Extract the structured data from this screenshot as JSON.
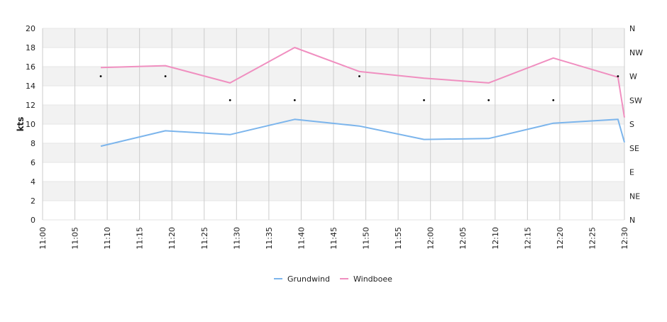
{
  "chart_data": {
    "type": "line",
    "title": "",
    "xlabel": "",
    "ylabel": "kts",
    "ylim": [
      0,
      20
    ],
    "y_ticks": [
      "0",
      "2",
      "4",
      "6",
      "8",
      "10",
      "12",
      "14",
      "16",
      "18",
      "20"
    ],
    "x_ticks": [
      "11:00",
      "11:05",
      "11:10",
      "11:15",
      "11:20",
      "11:25",
      "11:30",
      "11:35",
      "11:40",
      "11:45",
      "11:50",
      "11:55",
      "12:00",
      "12:05",
      "12:10",
      "12:15",
      "12:20",
      "12:25",
      "12:30"
    ],
    "x_range": [
      "11:00",
      "12:30"
    ],
    "right_axis_ticks": [
      "N",
      "NE",
      "E",
      "SE",
      "S",
      "SW",
      "W",
      "NW",
      "N"
    ],
    "grid": true,
    "legend_position": "bottom",
    "series": [
      {
        "name": "Grundwind",
        "color": "#7cb5ec",
        "points": [
          {
            "x": "11:09",
            "y": 7.7
          },
          {
            "x": "11:19",
            "y": 9.3
          },
          {
            "x": "11:29",
            "y": 8.9
          },
          {
            "x": "11:39",
            "y": 10.5
          },
          {
            "x": "11:49",
            "y": 9.8
          },
          {
            "x": "11:59",
            "y": 8.4
          },
          {
            "x": "12:09",
            "y": 8.5
          },
          {
            "x": "12:19",
            "y": 10.1
          },
          {
            "x": "12:29",
            "y": 10.5
          },
          {
            "x": "12:30",
            "y": 8.1
          }
        ]
      },
      {
        "name": "Windboee",
        "color": "#f08fc0",
        "points": [
          {
            "x": "11:09",
            "y": 15.9
          },
          {
            "x": "11:19",
            "y": 16.1
          },
          {
            "x": "11:29",
            "y": 14.3
          },
          {
            "x": "11:39",
            "y": 18.0
          },
          {
            "x": "11:49",
            "y": 15.5
          },
          {
            "x": "11:59",
            "y": 14.8
          },
          {
            "x": "12:09",
            "y": 14.3
          },
          {
            "x": "12:19",
            "y": 16.9
          },
          {
            "x": "12:29",
            "y": 14.9
          },
          {
            "x": "12:30",
            "y": 10.7
          }
        ]
      }
    ],
    "direction_markers": [
      {
        "x": "11:09",
        "dir": "W"
      },
      {
        "x": "11:19",
        "dir": "W"
      },
      {
        "x": "11:29",
        "dir": "SW"
      },
      {
        "x": "11:39",
        "dir": "SW"
      },
      {
        "x": "11:49",
        "dir": "W"
      },
      {
        "x": "11:59",
        "dir": "SW"
      },
      {
        "x": "12:09",
        "dir": "SW"
      },
      {
        "x": "12:19",
        "dir": "SW"
      },
      {
        "x": "12:29",
        "dir": "W"
      }
    ],
    "colors": {
      "band": "#f2f2f2",
      "grid_vertical": "#cccccc",
      "grid_horizontal": "#e6e6e6",
      "marker": "#000000"
    }
  }
}
